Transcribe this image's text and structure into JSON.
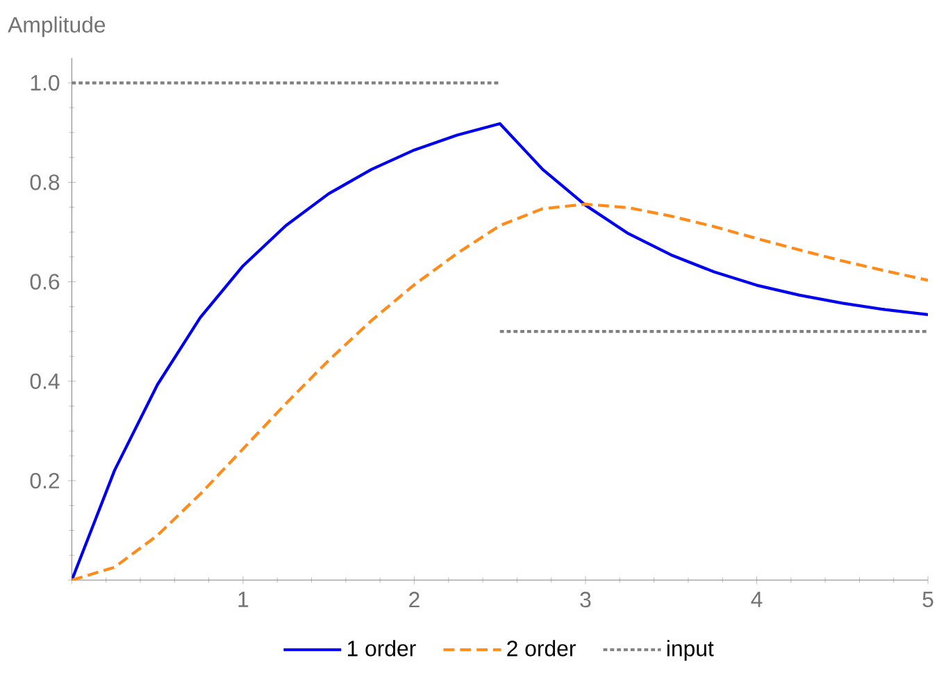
{
  "chart_data": {
    "type": "line",
    "ylabel": "Amplitude",
    "x": [
      0,
      0.25,
      0.5,
      0.75,
      1,
      1.25,
      1.5,
      1.75,
      2,
      2.25,
      2.5,
      2.75,
      3,
      3.25,
      3.5,
      3.75,
      4,
      4.25,
      4.5,
      4.75,
      5
    ],
    "series": [
      {
        "name": "1 order",
        "color": "#0000ee",
        "line_style": "solid",
        "values": [
          0,
          0.221,
          0.393,
          0.528,
          0.632,
          0.713,
          0.777,
          0.826,
          0.865,
          0.895,
          0.918,
          0.826,
          0.754,
          0.697,
          0.654,
          0.62,
          0.593,
          0.573,
          0.557,
          0.544,
          0.534
        ]
      },
      {
        "name": "2 order",
        "color": "#ff8c1a",
        "line_style": "dashed",
        "values": [
          0,
          0.026,
          0.09,
          0.173,
          0.264,
          0.355,
          0.442,
          0.522,
          0.594,
          0.657,
          0.713,
          0.747,
          0.756,
          0.749,
          0.732,
          0.711,
          0.687,
          0.664,
          0.642,
          0.622,
          0.603
        ]
      },
      {
        "name": "input",
        "color": "#808080",
        "line_style": "dotted",
        "x": [
          0,
          2.5
        ],
        "values": [
          1,
          1
        ]
      },
      {
        "color": "#808080",
        "line_style": "dotted",
        "x": [
          2.5,
          5
        ],
        "values": [
          0.5,
          0.5
        ]
      }
    ],
    "xlim": [
      0,
      5
    ],
    "ylim": [
      0,
      1.05
    ],
    "xticks": [
      {
        "value": 0,
        "label": null
      },
      1,
      2,
      3,
      4,
      5
    ],
    "yticks": [
      {
        "value": 0,
        "label": null
      },
      0.2,
      0.4,
      0.6,
      0.8,
      {
        "value": 1,
        "label": "1.0"
      }
    ],
    "legend": "bottom"
  }
}
